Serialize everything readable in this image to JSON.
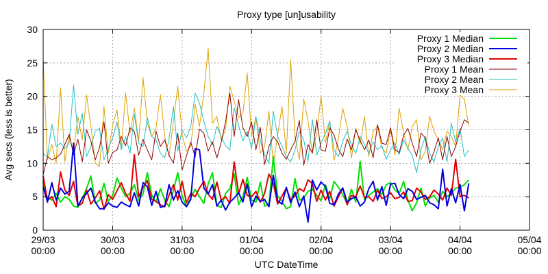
{
  "chart_data": {
    "type": "line",
    "title": "Proxy type [un]usability",
    "xlabel": "UTC DateTime",
    "ylabel": "Avg secs (less is better)",
    "ylim": [
      0,
      30
    ],
    "yticks": [
      0,
      5,
      10,
      15,
      20,
      25,
      30
    ],
    "xlim": [
      0,
      7
    ],
    "xticks": [
      {
        "value": 0,
        "line1": "29/03",
        "line2": "00:00"
      },
      {
        "value": 1,
        "line1": "30/03",
        "line2": "00:00"
      },
      {
        "value": 2,
        "line1": "31/03",
        "line2": "00:00"
      },
      {
        "value": 3,
        "line1": "01/04",
        "line2": "00:00"
      },
      {
        "value": 4,
        "line1": "02/04",
        "line2": "00:00"
      },
      {
        "value": 5,
        "line1": "03/04",
        "line2": "00:00"
      },
      {
        "value": 6,
        "line1": "04/04",
        "line2": "00:00"
      },
      {
        "value": 7,
        "line1": "05/04",
        "line2": "00:00"
      }
    ],
    "grid": true,
    "legend_position": "top-right",
    "x_step_days": 0.0625,
    "series": [
      {
        "name": "Proxy 1 Median",
        "color": "#00e000",
        "width": 2,
        "values": [
          7.2,
          4.8,
          4.5,
          5.5,
          4.2,
          5.0,
          4.6,
          3.6,
          3.4,
          4.8,
          6.2,
          8.1,
          4.0,
          4.5,
          7.0,
          4.3,
          5.2,
          7.8,
          6.3,
          5.0,
          5.5,
          6.8,
          4.5,
          5.4,
          8.6,
          5.2,
          4.2,
          6.2,
          4.5,
          3.5,
          5.9,
          8.6,
          5.1,
          3.6,
          4.8,
          6.1,
          5.0,
          4.0,
          6.9,
          8.6,
          3.7,
          3.4,
          5.5,
          6.2,
          8.4,
          3.8,
          5.0,
          7.9,
          4.5,
          4.2,
          7.2,
          3.6,
          3.8,
          11.0,
          5.1,
          4.3,
          3.2,
          3.5,
          7.7,
          4.5,
          4.8,
          5.8,
          6.1,
          5.2,
          4.4,
          6.8,
          4.7,
          7.3,
          6.4,
          5.3,
          3.9,
          6.1,
          4.2,
          10.3,
          4.6,
          5.2,
          5.7,
          6.2,
          5.3,
          6.8,
          7.1,
          6.0,
          5.5,
          7.3,
          4.5,
          2.9,
          4.1,
          6.3,
          3.6,
          4.8,
          5.2,
          4.2,
          5.8,
          5.0,
          5.5,
          6.3,
          6.4,
          6.8,
          7.5
        ]
      },
      {
        "name": "Proxy 2 Median",
        "color": "#0000e0",
        "width": 2,
        "values": [
          6.5,
          4.2,
          7.1,
          4.5,
          6.3,
          5.4,
          5.8,
          13.0,
          3.6,
          4.8,
          5.5,
          6.3,
          4.2,
          3.2,
          3.2,
          4.1,
          3.6,
          3.4,
          4.2,
          3.8,
          3.5,
          5.6,
          3.6,
          7.1,
          6.5,
          3.7,
          5.8,
          3.4,
          3.6,
          6.8,
          4.5,
          5.9,
          4.2,
          3.5,
          4.6,
          12.2,
          12.0,
          6.3,
          5.4,
          6.8,
          3.6,
          4.5,
          3.0,
          4.2,
          4.8,
          5.6,
          4.2,
          6.9,
          3.5,
          5.1,
          4.3,
          4.6,
          3.5,
          8.2,
          4.4,
          3.9,
          6.4,
          4.1,
          5.7,
          3.5,
          5.1,
          1.2,
          7.5,
          6.0,
          7.2,
          6.5,
          4.0,
          3.8,
          5.4,
          6.3,
          4.2,
          4.7,
          5.0,
          3.6,
          4.2,
          6.2,
          7.3,
          4.5,
          6.5,
          3.7,
          6.9,
          7.0,
          5.3,
          4.7,
          6.2,
          5.8,
          4.6,
          4.9,
          5.2,
          4.1,
          3.8,
          3.2,
          9.1,
          3.6,
          6.2,
          4.1,
          6.8,
          2.9,
          7.0
        ]
      },
      {
        "name": "Proxy 3 Median",
        "color": "#e00000",
        "width": 2,
        "values": [
          8.1,
          4.5,
          5.0,
          3.5,
          8.7,
          6.0,
          5.2,
          7.3,
          3.6,
          4.0,
          6.0,
          3.9,
          4.8,
          5.9,
          3.1,
          5.3,
          4.6,
          5.9,
          7.1,
          5.5,
          4.3,
          11.3,
          5.0,
          6.4,
          7.4,
          4.6,
          4.3,
          3.8,
          3.5,
          5.2,
          6.8,
          4.5,
          7.3,
          4.1,
          5.5,
          5.0,
          6.3,
          7.3,
          5.4,
          4.6,
          7.2,
          4.5,
          5.0,
          4.0,
          10.2,
          5.4,
          7.6,
          5.2,
          5.0,
          5.8,
          4.2,
          5.5,
          8.4,
          7.0,
          3.9,
          5.1,
          6.3,
          4.5,
          5.1,
          6.2,
          5.8,
          7.5,
          7.0,
          4.3,
          6.0,
          4.5,
          5.8,
          3.6,
          5.0,
          6.3,
          3.8,
          5.2,
          5.0,
          6.6,
          4.9,
          5.0,
          4.3,
          6.0,
          4.7,
          5.0,
          5.6,
          4.7,
          4.9,
          5.7,
          4.3,
          4.4,
          6.3,
          5.7,
          4.6,
          5.0,
          6.0,
          5.4,
          4.5,
          6.3,
          5.2,
          10.6,
          5.0,
          5.2,
          4.8
        ]
      },
      {
        "name": "Proxy 1 Mean",
        "color": "#8b0000",
        "width": 1,
        "values": [
          8.3,
          11.0,
          10.5,
          10.8,
          11.4,
          12.8,
          14.3,
          11.3,
          13.6,
          10.2,
          15.0,
          13.3,
          10.5,
          12.4,
          16.2,
          10.0,
          11.6,
          12.0,
          14.0,
          12.6,
          15.3,
          14.8,
          11.2,
          13.6,
          12.0,
          10.5,
          14.8,
          12.5,
          13.5,
          11.2,
          10.0,
          14.5,
          9.0,
          11.1,
          13.2,
          10.9,
          15.1,
          14.5,
          11.8,
          13.2,
          10.8,
          13.1,
          16.2,
          20.5,
          14.0,
          19.5,
          15.3,
          14.0,
          16.2,
          12.0,
          15.4,
          9.8,
          12.5,
          14.0,
          13.2,
          11.5,
          10.6,
          12.0,
          13.3,
          16.4,
          9.7,
          12.8,
          11.5,
          16.5,
          12.0,
          11.8,
          15.3,
          14.2,
          12.1,
          11.0,
          13.6,
          12.0,
          15.0,
          13.4,
          12.0,
          13.5,
          10.8,
          15.8,
          13.0,
          12.8,
          15.3,
          12.0,
          11.6,
          14.2,
          15.2,
          13.0,
          11.0,
          14.5,
          13.8,
          10.0,
          11.7,
          13.8,
          10.5,
          14.0,
          11.0,
          12.5,
          14.8,
          16.5,
          16.0
        ]
      },
      {
        "name": "Proxy 2 Mean",
        "color": "#20c0c0",
        "width": 1,
        "values": [
          11.4,
          11.0,
          15.8,
          12.5,
          13.0,
          12.2,
          13.0,
          21.7,
          14.3,
          17.5,
          11.0,
          12.5,
          14.8,
          15.2,
          10.5,
          12.2,
          13.8,
          16.2,
          12.0,
          14.0,
          11.5,
          17.3,
          13.0,
          12.5,
          16.8,
          14.0,
          13.5,
          11.5,
          10.8,
          13.6,
          18.5,
          11.8,
          15.0,
          13.8,
          15.5,
          20.5,
          19.0,
          16.3,
          14.0,
          12.8,
          15.5,
          14.0,
          12.6,
          12.0,
          18.3,
          15.7,
          13.3,
          14.8,
          12.2,
          17.0,
          13.4,
          11.3,
          10.0,
          17.8,
          14.0,
          12.5,
          11.0,
          10.2,
          12.0,
          14.8,
          13.5,
          10.3,
          16.5,
          11.2,
          13.0,
          14.5,
          16.3,
          12.0,
          11.0,
          13.3,
          14.8,
          12.7,
          11.5,
          14.0,
          12.8,
          11.5,
          13.2,
          12.0,
          12.6,
          10.6,
          12.0,
          13.0,
          11.3,
          13.5,
          12.2,
          11.2,
          8.6,
          12.0,
          14.0,
          11.5,
          10.2,
          12.5,
          13.8,
          10.2,
          16.0,
          13.2,
          15.2,
          11.0,
          12.0
        ]
      },
      {
        "name": "Proxy 3 Mean",
        "color": "#e0a000",
        "width": 1,
        "values": [
          25.6,
          10.5,
          12.8,
          10.0,
          21.3,
          10.2,
          14.3,
          11.5,
          17.0,
          13.5,
          20.2,
          15.5,
          10.0,
          9.5,
          18.5,
          11.5,
          15.7,
          18.0,
          12.2,
          20.5,
          14.5,
          18.3,
          13.3,
          22.8,
          16.0,
          14.0,
          15.3,
          20.3,
          14.0,
          11.0,
          16.3,
          21.5,
          14.3,
          11.8,
          12.5,
          18.8,
          15.5,
          20.5,
          27.2,
          16.0,
          17.0,
          13.5,
          15.0,
          21.5,
          19.3,
          16.8,
          17.5,
          23.5,
          14.0,
          17.0,
          11.5,
          12.5,
          17.8,
          9.8,
          14.2,
          18.5,
          11.5,
          25.5,
          14.0,
          10.5,
          19.6,
          16.3,
          11.5,
          14.5,
          20.0,
          13.0,
          16.3,
          10.4,
          13.8,
          18.2,
          15.5,
          10.8,
          15.3,
          12.8,
          17.0,
          11.0,
          14.8,
          15.5,
          12.3,
          11.5,
          15.0,
          11.2,
          18.2,
          14.5,
          12.0,
          15.5,
          16.5,
          10.5,
          11.8,
          17.0,
          14.8,
          13.5,
          12.0,
          14.8,
          14.0,
          12.5,
          20.2,
          19.6,
          15.5
        ]
      }
    ]
  }
}
